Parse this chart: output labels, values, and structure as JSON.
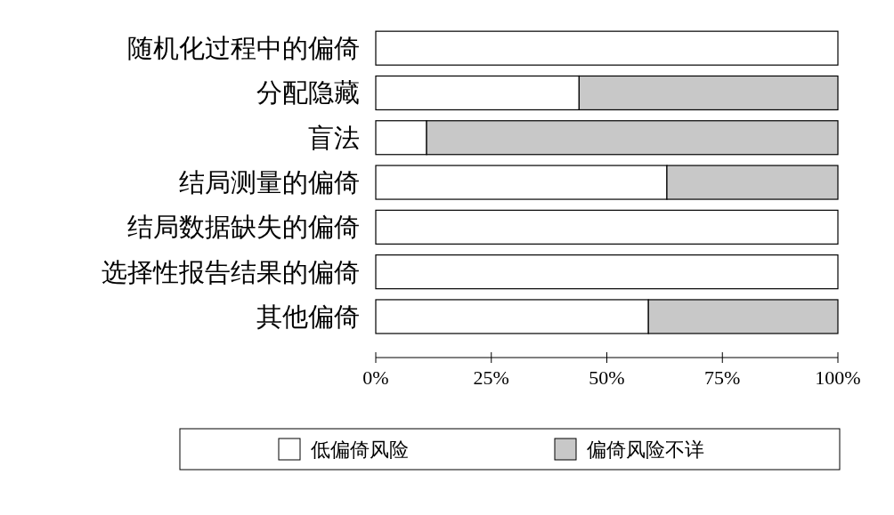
{
  "chart_data": {
    "type": "bar",
    "orientation": "horizontal",
    "stacked": true,
    "categories": [
      "随机化过程中的偏倚",
      "分配隐藏",
      "盲法",
      "结局测量的偏倚",
      "结局数据缺失的偏倚",
      "选择性报告结果的偏倚",
      "其他偏倚"
    ],
    "series": [
      {
        "name": "低偏倚风险",
        "color": "#ffffff",
        "values": [
          100,
          44,
          11,
          63,
          100,
          100,
          59
        ]
      },
      {
        "name": "偏倚风险不详",
        "color": "#c8c8c8",
        "values": [
          0,
          56,
          89,
          37,
          0,
          0,
          41
        ]
      }
    ],
    "xlim": [
      0,
      100
    ],
    "xticks": [
      {
        "value": 0,
        "label": "0%"
      },
      {
        "value": 25,
        "label": "25%"
      },
      {
        "value": 50,
        "label": "50%"
      },
      {
        "value": 75,
        "label": "75%"
      },
      {
        "value": 100,
        "label": "100%"
      }
    ],
    "legend": "bottom"
  }
}
